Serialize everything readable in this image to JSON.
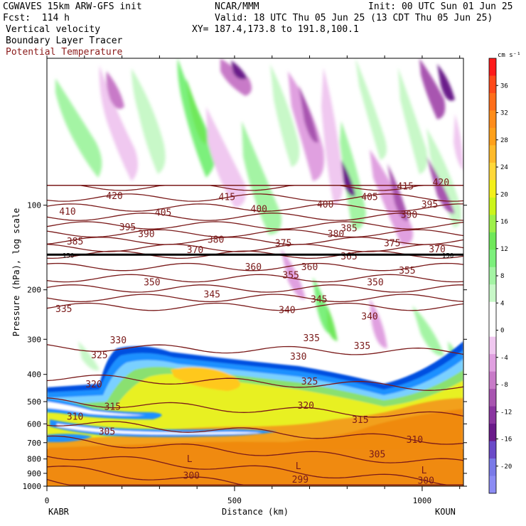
{
  "header": {
    "model": "CGWAVES 15km ARW-GFS init",
    "fcst": "Fcst:  114 h",
    "org": "NCAR/MMM",
    "init": "Init: 00 UTC Sun 01 Jun 25",
    "valid": "Valid: 18 UTC Thu 05 Jun 25 (13 CDT Thu 05 Jun 25)",
    "xy": "XY= 187.4,173.8 to 191.8,100.1",
    "field1": "Vertical velocity",
    "field2": "Boundary Layer Tracer",
    "field3": "Potential Temperature",
    "field3_color": "#8b1a1a"
  },
  "chart_data": {
    "type": "heatmap",
    "title": "",
    "xlabel": "Distance (km)",
    "ylabel": "Pressure (hPa), log scale",
    "xlim": [
      0,
      1110
    ],
    "ylim": [
      1000,
      30
    ],
    "y_scale": "log",
    "x_ticks": [
      0,
      500,
      1000
    ],
    "y_ticks": [
      100,
      200,
      300,
      400,
      500,
      600,
      700,
      800,
      900,
      1000
    ],
    "x_end_labels": [
      "KABR",
      "KOUN"
    ],
    "colorbar": {
      "units": "cm s⁻¹",
      "ticks": [
        36,
        32,
        28,
        24,
        20,
        16,
        12,
        8,
        4,
        0,
        -4,
        -8,
        -12,
        -16,
        -20
      ],
      "colors": [
        "#ff1a1a",
        "#ff4a1a",
        "#ff6e1a",
        "#ff8c1a",
        "#ffa01a",
        "#ffba2a",
        "#ffd83a",
        "#f4f01a",
        "#ccf51a",
        "#9ef04a",
        "#6fe85a",
        "#7cf07c",
        "#a4f4a4",
        "#c8f8c8",
        "#ffffff",
        "#ffffff",
        "#f0c8f0",
        "#e0a0e0",
        "#c87ac8",
        "#a855b0",
        "#8a35a0",
        "#6a1a8a",
        "#6a4ac8",
        "#7a7ae8",
        "#8c8cf4"
      ]
    },
    "isentropes_K": [
      299,
      300,
      305,
      310,
      315,
      320,
      325,
      330,
      335,
      340,
      345,
      350,
      355,
      360,
      365,
      370,
      375,
      380,
      385,
      390,
      395,
      400,
      405,
      410,
      415,
      420
    ],
    "isentrope_labels": [
      {
        "v": "420",
        "x": 180,
        "p": 95
      },
      {
        "v": "415",
        "x": 480,
        "p": 96
      },
      {
        "v": "415",
        "x": 955,
        "p": 88
      },
      {
        "v": "420",
        "x": 1050,
        "p": 85
      },
      {
        "v": "410",
        "x": 55,
        "p": 108
      },
      {
        "v": "405",
        "x": 310,
        "p": 109
      },
      {
        "v": "400",
        "x": 565,
        "p": 106
      },
      {
        "v": "400",
        "x": 742,
        "p": 102
      },
      {
        "v": "405",
        "x": 860,
        "p": 96
      },
      {
        "v": "395",
        "x": 1020,
        "p": 102
      },
      {
        "v": "390",
        "x": 965,
        "p": 111
      },
      {
        "v": "395",
        "x": 215,
        "p": 123
      },
      {
        "v": "390",
        "x": 265,
        "p": 130
      },
      {
        "v": "385",
        "x": 805,
        "p": 124
      },
      {
        "v": "385",
        "x": 75,
        "p": 138
      },
      {
        "v": "380",
        "x": 450,
        "p": 136
      },
      {
        "v": "375",
        "x": 630,
        "p": 140
      },
      {
        "v": "380",
        "x": 770,
        "p": 130
      },
      {
        "v": "375",
        "x": 920,
        "p": 140
      },
      {
        "v": "370",
        "x": 1040,
        "p": 147
      },
      {
        "v": "370",
        "x": 395,
        "p": 148
      },
      {
        "v": "365",
        "x": 805,
        "p": 156
      },
      {
        "v": "360",
        "x": 550,
        "p": 170
      },
      {
        "v": "360",
        "x": 700,
        "p": 170
      },
      {
        "v": "355",
        "x": 650,
        "p": 182
      },
      {
        "v": "355",
        "x": 960,
        "p": 175
      },
      {
        "v": "350",
        "x": 875,
        "p": 193
      },
      {
        "v": "350",
        "x": 280,
        "p": 193
      },
      {
        "v": "345",
        "x": 440,
        "p": 213
      },
      {
        "v": "345",
        "x": 725,
        "p": 222
      },
      {
        "v": "340",
        "x": 640,
        "p": 242
      },
      {
        "v": "340",
        "x": 860,
        "p": 255
      },
      {
        "v": "335",
        "x": 45,
        "p": 240
      },
      {
        "v": "335",
        "x": 705,
        "p": 305
      },
      {
        "v": "335",
        "x": 840,
        "p": 325
      },
      {
        "v": "330",
        "x": 190,
        "p": 310
      },
      {
        "v": "330",
        "x": 670,
        "p": 355
      },
      {
        "v": "325",
        "x": 140,
        "p": 350
      },
      {
        "v": "325",
        "x": 700,
        "p": 435
      },
      {
        "v": "320",
        "x": 125,
        "p": 445
      },
      {
        "v": "320",
        "x": 690,
        "p": 530
      },
      {
        "v": "315",
        "x": 175,
        "p": 535
      },
      {
        "v": "315",
        "x": 835,
        "p": 595
      },
      {
        "v": "310",
        "x": 75,
        "p": 580
      },
      {
        "v": "310",
        "x": 980,
        "p": 700
      },
      {
        "v": "305",
        "x": 160,
        "p": 655
      },
      {
        "v": "305",
        "x": 880,
        "p": 790
      },
      {
        "v": "300",
        "x": 385,
        "p": 940
      },
      {
        "v": "299",
        "x": 675,
        "p": 970
      },
      {
        "v": "300",
        "x": 1010,
        "p": 980
      }
    ],
    "low_markers": [
      {
        "v": "L",
        "x": 380,
        "p": 820
      },
      {
        "v": "L",
        "x": 670,
        "p": 870
      },
      {
        "v": "L",
        "x": 1005,
        "p": 900
      }
    ],
    "tropopause": {
      "value": "150",
      "p": 150
    }
  }
}
